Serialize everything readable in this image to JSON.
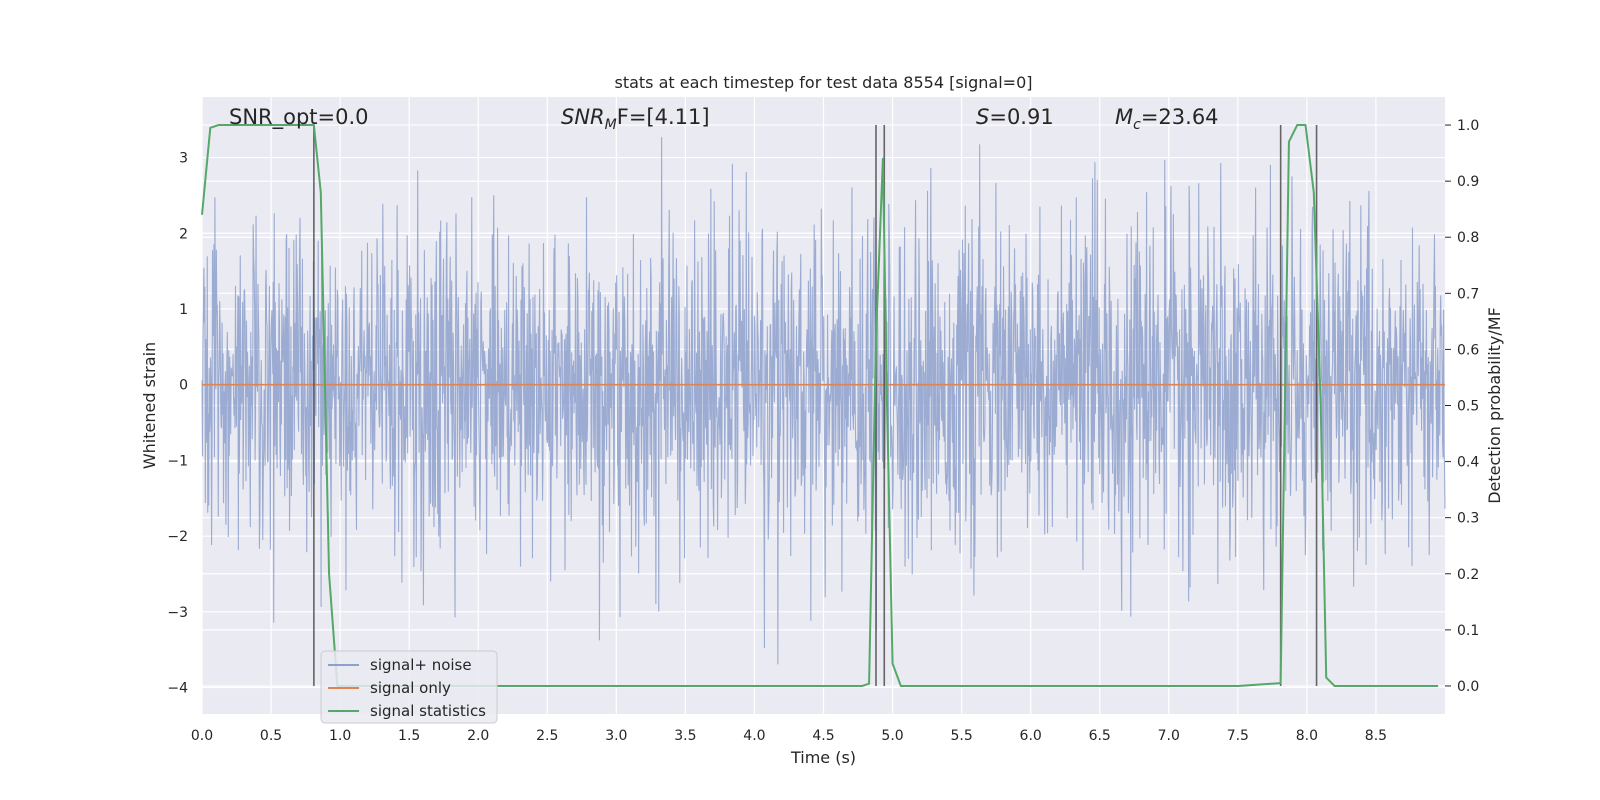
{
  "chart_data": {
    "type": "line",
    "title": "stats at each timestep for test data 8554 [signal=0]",
    "xlabel": "Time (s)",
    "ylabel": "Whitened strain",
    "y2label": "Detection probability/MF",
    "xlim": [
      0.0,
      9.0
    ],
    "ylim": [
      -4.35,
      3.8
    ],
    "y2lim": [
      -0.05,
      1.05
    ],
    "grid": true,
    "legend_position": "lower-left",
    "xticks": [
      "0.0",
      "0.5",
      "1.0",
      "1.5",
      "2.0",
      "2.5",
      "3.0",
      "3.5",
      "4.0",
      "4.5",
      "5.0",
      "5.5",
      "6.0",
      "6.5",
      "7.0",
      "7.5",
      "8.0",
      "8.5"
    ],
    "yticks": [
      "−4",
      "−3",
      "−2",
      "−1",
      "0",
      "1",
      "2",
      "3"
    ],
    "y2ticks": [
      "0.0",
      "0.1",
      "0.2",
      "0.3",
      "0.4",
      "0.5",
      "0.6",
      "0.7",
      "0.8",
      "0.9",
      "1.0"
    ],
    "annotations": {
      "snr_opt": "SNR_opt=0.0",
      "snr_mf_prefix": "SNR",
      "snr_mf_sub": "M",
      "snr_mf_suffix": "F=[4.11]",
      "s_prefix": "S",
      "s_suffix": "=0.91",
      "mc_prefix": "M",
      "mc_sub": "c",
      "mc_suffix": "=23.64"
    },
    "series": [
      {
        "name": "signal+ noise",
        "color": "#8da0cb",
        "kind": "noise",
        "duration_s": 9.0,
        "description_values": {
          "typical_band": [
            -1.8,
            1.8
          ],
          "min": -3.8,
          "max": 3.35
        }
      },
      {
        "name": "signal only",
        "color": "#dd8452",
        "kind": "line",
        "x": [
          0.0,
          9.0
        ],
        "y": [
          0.0,
          0.0
        ]
      },
      {
        "name": "signal statistics",
        "color": "#55a868",
        "kind": "line",
        "axis": "y2",
        "x": [
          0.0,
          0.06,
          0.12,
          0.18,
          0.24,
          0.3,
          0.36,
          0.42,
          0.48,
          0.54,
          0.6,
          0.66,
          0.72,
          0.78,
          0.81,
          0.86,
          0.92,
          0.98,
          1.05,
          1.5,
          2.0,
          2.5,
          3.0,
          3.5,
          4.0,
          4.5,
          4.7,
          4.78,
          4.83,
          4.88,
          4.93,
          4.96,
          5.0,
          5.06,
          5.5,
          6.0,
          6.5,
          7.0,
          7.5,
          7.81,
          7.87,
          7.93,
          7.99,
          8.05,
          8.1,
          8.14,
          8.2,
          8.5,
          8.95
        ],
        "y": [
          0.84,
          0.995,
          1.0,
          1.0,
          1.0,
          1.0,
          1.0,
          1.0,
          1.0,
          1.0,
          1.0,
          1.0,
          1.0,
          1.0,
          1.0,
          0.88,
          0.2,
          0.0,
          0.0,
          0.0,
          0.0,
          0.0,
          0.0,
          0.0,
          0.0,
          0.0,
          0.0,
          0.0,
          0.004,
          0.62,
          0.94,
          0.5,
          0.04,
          0.0,
          0.0,
          0.0,
          0.0,
          0.0,
          0.0,
          0.005,
          0.97,
          1.0,
          1.0,
          0.88,
          0.5,
          0.015,
          0.0,
          0.0,
          0.0
        ]
      }
    ],
    "vertical_markers_x": [
      0.81,
      4.88,
      4.94,
      7.81,
      8.07
    ]
  }
}
